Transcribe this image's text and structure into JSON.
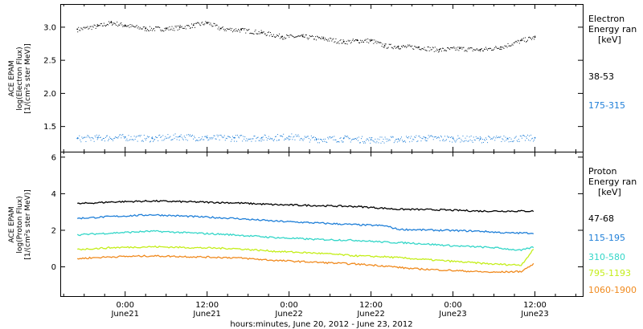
{
  "figure": {
    "xlabel": "hours:minutes, June 20, 2012 - June 23, 2012",
    "x_ticks": [
      {
        "time": "0:00",
        "date": "June21",
        "hours": 24
      },
      {
        "time": "12:00",
        "date": "June21",
        "hours": 36
      },
      {
        "time": "0:00",
        "date": "June22",
        "hours": 48
      },
      {
        "time": "12:00",
        "date": "June22",
        "hours": 60
      },
      {
        "time": "0:00",
        "date": "June23",
        "hours": 72
      },
      {
        "time": "12:00",
        "date": "June23",
        "hours": 84
      }
    ],
    "x_range_hours": [
      14.5,
      91
    ]
  },
  "chart_data": [
    {
      "type": "scatter",
      "panel": "electron",
      "ylabel_lines": [
        "ACE EPAM",
        "log(Electron Flux)",
        "[1/(cm²s ster MeV)]"
      ],
      "ylim": [
        1.12,
        3.35
      ],
      "y_ticks": [
        "1.5",
        "2.0",
        "2.5",
        "3.0"
      ],
      "legend_title": [
        "Electron",
        "Energy ran",
        "[keV]"
      ],
      "series": [
        {
          "name": "38-53",
          "color": "#000000",
          "x": [
            17,
            20,
            22,
            24,
            27,
            30,
            32,
            34,
            36,
            38,
            41,
            44,
            47,
            50,
            53,
            56,
            58,
            60,
            62,
            64,
            67,
            70,
            73,
            76,
            79,
            82,
            84
          ],
          "y": [
            2.97,
            3.02,
            3.07,
            3.03,
            2.98,
            2.98,
            3.0,
            3.03,
            3.07,
            2.98,
            2.96,
            2.92,
            2.86,
            2.86,
            2.83,
            2.78,
            2.8,
            2.8,
            2.72,
            2.71,
            2.7,
            2.66,
            2.68,
            2.66,
            2.7,
            2.8,
            2.85
          ]
        },
        {
          "name": "175-315",
          "color": "#1f7fd8",
          "x": [
            17,
            20,
            24,
            28,
            32,
            36,
            40,
            44,
            48,
            52,
            56,
            60,
            64,
            68,
            72,
            76,
            80,
            84
          ],
          "y": [
            1.32,
            1.33,
            1.34,
            1.32,
            1.35,
            1.33,
            1.33,
            1.33,
            1.35,
            1.31,
            1.32,
            1.3,
            1.31,
            1.33,
            1.32,
            1.31,
            1.32,
            1.33
          ]
        }
      ]
    },
    {
      "type": "line",
      "panel": "proton",
      "ylabel_lines": [
        "ACE EPAM",
        "log(Proton Flux)",
        "[1/(cm²s ster MeV)]"
      ],
      "ylim": [
        -1.6,
        6.3
      ],
      "y_ticks": [
        "0",
        "2",
        "4",
        "6"
      ],
      "legend_title": [
        "Proton",
        "Energy ran",
        "[keV]"
      ],
      "series": [
        {
          "name": "47-68",
          "color": "#000000",
          "x": [
            17,
            22,
            28,
            34,
            40,
            46,
            52,
            58,
            62,
            64,
            70,
            76,
            80,
            84
          ],
          "y": [
            3.45,
            3.55,
            3.6,
            3.55,
            3.5,
            3.4,
            3.35,
            3.3,
            3.2,
            3.15,
            3.12,
            3.05,
            3.05,
            3.05
          ]
        },
        {
          "name": "115-195",
          "color": "#1f7fd8",
          "x": [
            17,
            22,
            28,
            34,
            40,
            46,
            52,
            58,
            62,
            64,
            70,
            76,
            80,
            84
          ],
          "y": [
            2.65,
            2.75,
            2.85,
            2.75,
            2.65,
            2.5,
            2.4,
            2.3,
            2.25,
            2.05,
            2.0,
            1.95,
            1.85,
            1.85
          ]
        },
        {
          "name": "310-580",
          "color": "#33d6c8",
          "x": [
            17,
            22,
            28,
            34,
            40,
            46,
            52,
            58,
            62,
            66,
            72,
            78,
            82,
            84
          ],
          "y": [
            1.75,
            1.85,
            1.95,
            1.85,
            1.75,
            1.6,
            1.5,
            1.45,
            1.35,
            1.3,
            1.15,
            1.05,
            0.9,
            1.1
          ]
        },
        {
          "name": "795-1193",
          "color": "#c4ee1a",
          "x": [
            17,
            22,
            28,
            34,
            40,
            46,
            52,
            58,
            62,
            66,
            72,
            78,
            82,
            84
          ],
          "y": [
            0.95,
            1.05,
            1.1,
            1.05,
            1.0,
            0.85,
            0.75,
            0.6,
            0.55,
            0.45,
            0.3,
            0.15,
            0.1,
            1.05
          ]
        },
        {
          "name": "1060-1900",
          "color": "#f08a1e",
          "x": [
            17,
            22,
            28,
            34,
            40,
            46,
            52,
            58,
            62,
            66,
            72,
            78,
            82,
            84
          ],
          "y": [
            0.45,
            0.55,
            0.6,
            0.55,
            0.5,
            0.35,
            0.25,
            0.15,
            0.05,
            -0.1,
            -0.2,
            -0.3,
            -0.25,
            0.2
          ]
        }
      ]
    }
  ]
}
